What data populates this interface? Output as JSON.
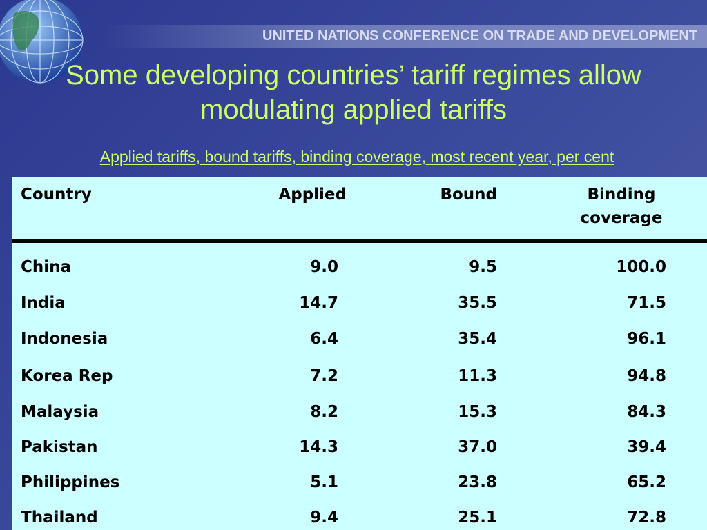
{
  "header": {
    "organization": "UNITED NATIONS CONFERENCE ON TRADE AND DEVELOPMENT",
    "title": "Some developing countries’ tariff regimes allow modulating applied tariffs",
    "subtitle": "Applied tariffs, bound tariffs, binding coverage, most recent year, per cent"
  },
  "table": {
    "columns": [
      "Country",
      "Applied",
      "Bound",
      "Binding coverage"
    ],
    "rows": [
      [
        "China",
        "9.0",
        "9.5",
        "100.0"
      ],
      [
        "India",
        "14.7",
        "35.5",
        "71.5"
      ],
      [
        "Indonesia",
        "6.4",
        "35.4",
        "96.1"
      ],
      [
        "Korea Rep",
        "7.2",
        "11.3",
        "94.8"
      ],
      [
        "Malaysia",
        "8.2",
        "15.3",
        "84.3"
      ],
      [
        "Pakistan",
        "14.3",
        "37.0",
        "39.4"
      ],
      [
        "Philippines",
        "5.1",
        "23.8",
        "65.2"
      ],
      [
        "Thailand",
        "9.4",
        "25.1",
        "72.8"
      ]
    ]
  }
}
